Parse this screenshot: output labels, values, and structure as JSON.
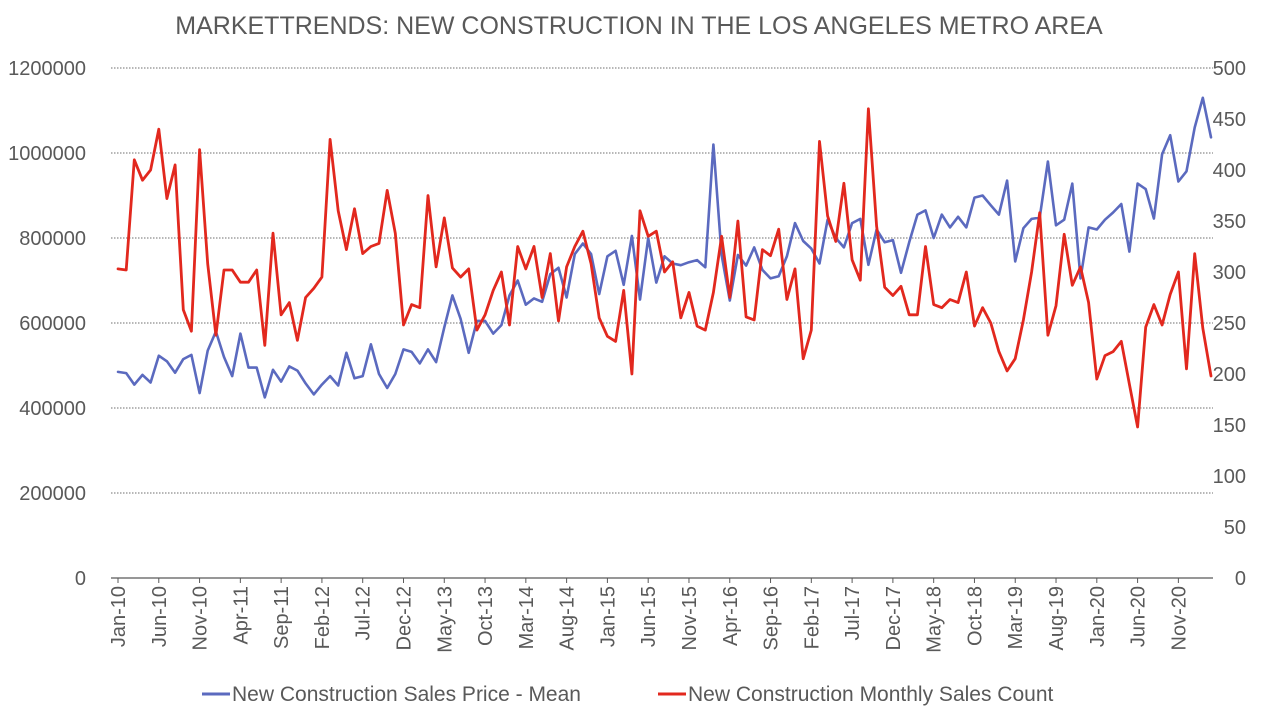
{
  "chart_data": {
    "type": "line",
    "title": "MARKETTRENDS: NEW CONSTRUCTION IN THE LOS ANGELES METRO AREA",
    "xlabel": "",
    "ylabel": "",
    "y2label": "",
    "grid": true,
    "legend_position": "bottom",
    "y_left": {
      "min": 0,
      "max": 1200000,
      "ticks": [
        "0",
        "200000",
        "400000",
        "600000",
        "800000",
        "1000000",
        "1200000"
      ]
    },
    "y_right": {
      "min": 0,
      "max": 500,
      "ticks": [
        "0",
        "50",
        "100",
        "150",
        "200",
        "250",
        "300",
        "350",
        "400",
        "450",
        "500"
      ]
    },
    "x_tick_labels": [
      "Jan-10",
      "Jun-10",
      "Nov-10",
      "Apr-11",
      "Sep-11",
      "Feb-12",
      "Jul-12",
      "Dec-12",
      "May-13",
      "Oct-13",
      "Mar-14",
      "Aug-14",
      "Jan-15",
      "Jun-15",
      "Nov-15",
      "Apr-16",
      "Sep-16",
      "Feb-17",
      "Jul-17",
      "Dec-17",
      "May-18",
      "Oct-18",
      "Mar-19",
      "Aug-19",
      "Jan-20",
      "Jun-20",
      "Nov-20"
    ],
    "series": [
      {
        "name": "New Construction Sales Price - Mean",
        "axis": "left",
        "color": "#5B6ABF",
        "values": [
          485000,
          482000,
          455000,
          478000,
          460000,
          523000,
          510000,
          483000,
          515000,
          525000,
          435000,
          535000,
          580000,
          520000,
          475000,
          575000,
          495000,
          495000,
          425000,
          490000,
          462000,
          498000,
          488000,
          458000,
          432000,
          455000,
          475000,
          453000,
          530000,
          470000,
          475000,
          550000,
          480000,
          447000,
          480000,
          538000,
          532000,
          505000,
          538000,
          508000,
          590000,
          665000,
          610000,
          530000,
          605000,
          605000,
          575000,
          595000,
          665000,
          700000,
          643000,
          658000,
          650000,
          715000,
          730000,
          660000,
          762000,
          787000,
          762000,
          668000,
          757000,
          770000,
          690000,
          805000,
          655000,
          800000,
          695000,
          757000,
          740000,
          736000,
          743000,
          748000,
          731000,
          1020000,
          760000,
          653000,
          760000,
          735000,
          778000,
          725000,
          705000,
          710000,
          757000,
          835000,
          793000,
          775000,
          740000,
          843000,
          800000,
          778000,
          835000,
          845000,
          737000,
          820000,
          790000,
          795000,
          718000,
          790000,
          855000,
          865000,
          800000,
          855000,
          825000,
          850000,
          825000,
          895000,
          900000,
          877000,
          855000,
          935000,
          745000,
          823000,
          845000,
          848000,
          980000,
          830000,
          843000,
          928000,
          705000,
          825000,
          820000,
          843000,
          860000,
          880000,
          768000,
          928000,
          915000,
          846000,
          997000,
          1042000,
          933000,
          957000,
          1060000,
          1130000,
          1037000
        ]
      },
      {
        "name": "New Construction Monthly Sales Count",
        "axis": "right",
        "color": "#E2281E",
        "values": [
          303,
          302,
          410,
          390,
          400,
          440,
          372,
          405,
          263,
          242,
          420,
          308,
          238,
          302,
          302,
          290,
          290,
          302,
          228,
          338,
          258,
          270,
          233,
          275,
          284,
          295,
          430,
          360,
          322,
          362,
          318,
          325,
          328,
          380,
          338,
          248,
          268,
          265,
          375,
          305,
          353,
          304,
          295,
          303,
          243,
          258,
          282,
          300,
          248,
          325,
          303,
          325,
          275,
          318,
          252,
          305,
          325,
          340,
          308,
          255,
          237,
          232,
          282,
          200,
          360,
          335,
          340,
          300,
          310,
          255,
          280,
          247,
          243,
          280,
          335,
          275,
          350,
          256,
          253,
          322,
          316,
          342,
          273,
          303,
          215,
          243,
          428,
          355,
          330,
          387,
          312,
          292,
          460,
          345,
          285,
          277,
          286,
          258,
          258,
          325,
          268,
          265,
          273,
          270,
          300,
          247,
          265,
          250,
          222,
          203,
          215,
          253,
          300,
          358,
          238,
          267,
          337,
          287,
          305,
          270,
          195,
          218,
          222,
          232,
          190,
          148,
          246,
          268,
          248,
          278,
          300,
          205,
          318,
          245,
          198
        ]
      }
    ]
  }
}
